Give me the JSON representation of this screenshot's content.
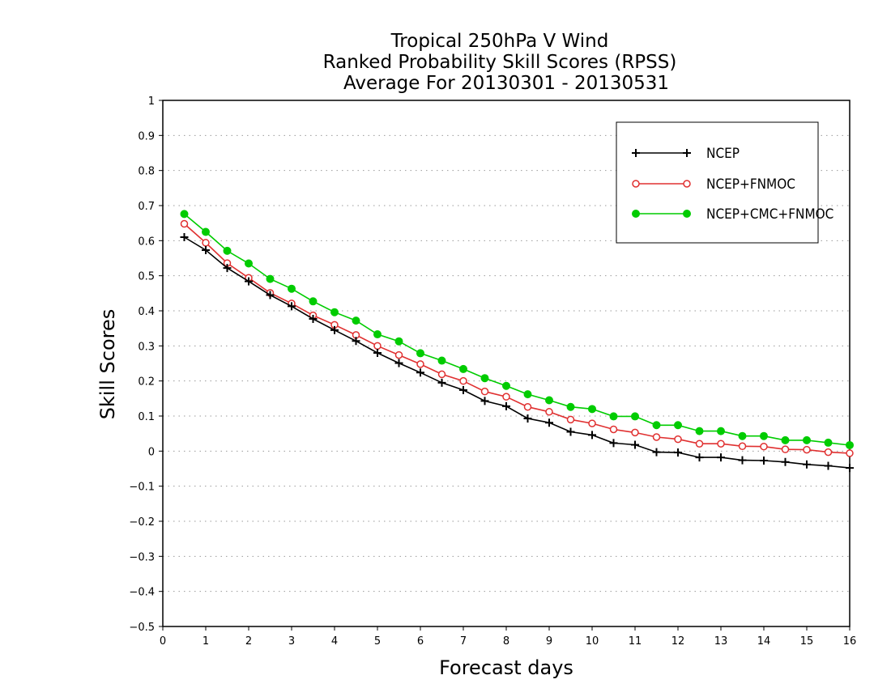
{
  "chart_data": {
    "type": "line",
    "title": "Tropical 250hPa V Wind",
    "subtitle": "Ranked Probability Skill Scores (RPSS)",
    "subtitle2": "Average For 20130301 - 20130531",
    "xlabel": "Forecast days",
    "ylabel": "Skill Scores",
    "xlim": [
      0,
      16
    ],
    "ylim": [
      -0.5,
      1
    ],
    "xticks": [
      "0",
      "1",
      "2",
      "3",
      "4",
      "5",
      "6",
      "7",
      "8",
      "9",
      "10",
      "11",
      "12",
      "13",
      "14",
      "15",
      "16"
    ],
    "yticks": [
      "1",
      "0.9",
      "0.8",
      "0.7",
      "0.6",
      "0.5",
      "0.4",
      "0.3",
      "0.2",
      "0.1",
      "0",
      "−0.1",
      "−0.2",
      "−0.3",
      "−0.4",
      "−0.5"
    ],
    "grid": true,
    "legend_position": "top-right",
    "x": [
      0.5,
      1,
      1.5,
      2,
      2.5,
      3,
      3.5,
      4,
      4.5,
      5,
      5.5,
      6,
      6.5,
      7,
      7.5,
      8,
      8.5,
      9,
      9.5,
      10,
      10.5,
      11,
      11.5,
      12,
      12.5,
      13,
      13.5,
      14,
      14.5,
      15,
      15.5,
      16
    ],
    "series": [
      {
        "name": "NCEP",
        "color": "#000000",
        "marker": "plus",
        "values": [
          0.61,
          0.573,
          0.522,
          0.484,
          0.445,
          0.413,
          0.377,
          0.345,
          0.314,
          0.28,
          0.251,
          0.224,
          0.195,
          0.174,
          0.143,
          0.128,
          0.093,
          0.081,
          0.055,
          0.046,
          0.023,
          0.018,
          -0.003,
          -0.004,
          -0.018,
          -0.018,
          -0.026,
          -0.027,
          -0.031,
          -0.038,
          -0.042,
          -0.048
        ]
      },
      {
        "name": "NCEP+FNMOC",
        "color": "#e03030",
        "marker": "open-circle",
        "values": [
          0.648,
          0.594,
          0.536,
          0.494,
          0.451,
          0.421,
          0.387,
          0.36,
          0.331,
          0.3,
          0.274,
          0.248,
          0.219,
          0.2,
          0.17,
          0.155,
          0.126,
          0.112,
          0.09,
          0.079,
          0.062,
          0.053,
          0.04,
          0.034,
          0.021,
          0.021,
          0.014,
          0.013,
          0.005,
          0.004,
          -0.003,
          -0.006
        ]
      },
      {
        "name": "NCEP+CMC+FNMOC",
        "color": "#00cc00",
        "marker": "filled-circle",
        "values": [
          0.676,
          0.625,
          0.571,
          0.535,
          0.491,
          0.463,
          0.427,
          0.396,
          0.372,
          0.333,
          0.313,
          0.279,
          0.258,
          0.234,
          0.208,
          0.186,
          0.162,
          0.145,
          0.126,
          0.12,
          0.099,
          0.099,
          0.074,
          0.074,
          0.057,
          0.057,
          0.043,
          0.043,
          0.031,
          0.031,
          0.024,
          0.017
        ]
      }
    ]
  }
}
